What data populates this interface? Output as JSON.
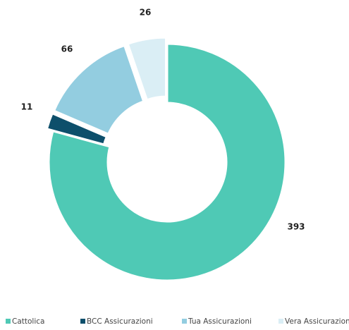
{
  "chart_data": {
    "type": "donut",
    "categories": [
      "Cattolica",
      "BCC Assicurazioni",
      "Tua Assicurazioni",
      "Vera Assicurazioni"
    ],
    "values": [
      393,
      11,
      66,
      26
    ],
    "colors": [
      "#4fc9b5",
      "#0d4f6b",
      "#93cde0",
      "#daeef5"
    ],
    "legend": "bottom"
  }
}
